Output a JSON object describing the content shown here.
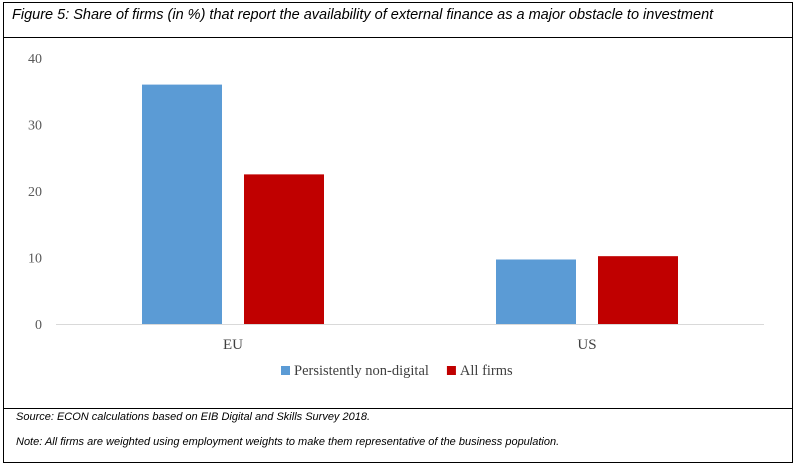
{
  "chart_data": {
    "type": "bar",
    "title": "Figure 5: Share of firms (in %) that report the availability of external finance as a major obstacle to investment",
    "categories": [
      "EU",
      "US"
    ],
    "series": [
      {
        "name": "Persistently non-digital",
        "values": [
          36,
          9.7
        ],
        "color": "#5b9bd5"
      },
      {
        "name": "All firms",
        "values": [
          22.5,
          10.2
        ],
        "color": "#c00000"
      }
    ],
    "ylim": [
      0,
      40
    ],
    "yticks": [
      "0",
      "10",
      "20",
      "30",
      "40"
    ],
    "grid": false,
    "legend": "bottom"
  },
  "footer": {
    "source": "Source: ECON calculations based on EIB Digital and Skills Survey 2018.",
    "note": "Note: All firms are weighted using employment weights to make them representative of the business population."
  }
}
